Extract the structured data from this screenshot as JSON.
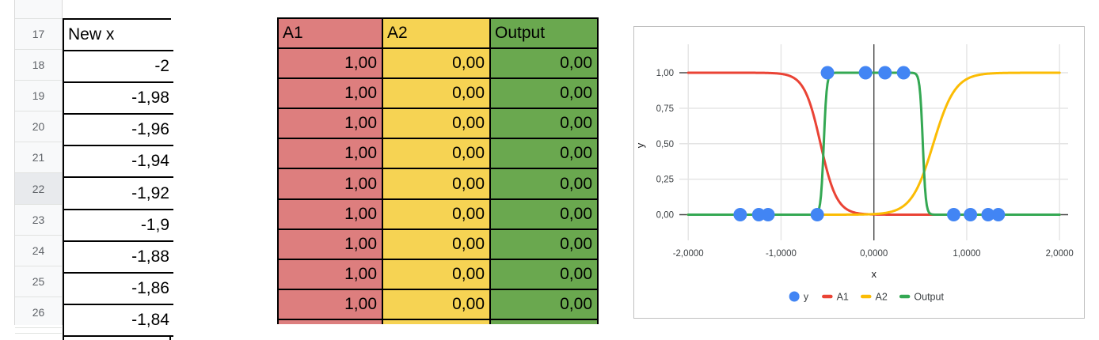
{
  "left_sheet": {
    "header": {
      "row": "17",
      "value": "New x"
    },
    "rows": [
      {
        "row": "18",
        "value": "-2"
      },
      {
        "row": "19",
        "value": "-1,98"
      },
      {
        "row": "20",
        "value": "-1,96"
      },
      {
        "row": "21",
        "value": "-1,94"
      },
      {
        "row": "22",
        "value": "-1,92",
        "highlighted": true
      },
      {
        "row": "23",
        "value": "-1,9"
      },
      {
        "row": "24",
        "value": "-1,88"
      },
      {
        "row": "25",
        "value": "-1,86"
      },
      {
        "row": "26",
        "value": "-1,84"
      }
    ]
  },
  "middle_table": {
    "columns": [
      {
        "label": "A1",
        "color": "#DD7E7E"
      },
      {
        "label": "A2",
        "color": "#F6D353"
      },
      {
        "label": "Output",
        "color": "#6AA84F"
      }
    ],
    "rows": [
      [
        "1,00",
        "0,00",
        "0,00"
      ],
      [
        "1,00",
        "0,00",
        "0,00"
      ],
      [
        "1,00",
        "0,00",
        "0,00"
      ],
      [
        "1,00",
        "0,00",
        "0,00"
      ],
      [
        "1,00",
        "0,00",
        "0,00"
      ],
      [
        "1,00",
        "0,00",
        "0,00"
      ],
      [
        "1,00",
        "0,00",
        "0,00"
      ],
      [
        "1,00",
        "0,00",
        "0,00"
      ],
      [
        "1,00",
        "0,00",
        "0,00"
      ]
    ]
  },
  "chart_data": {
    "type": "line",
    "xlabel": "x",
    "ylabel": "y",
    "xlim": [
      -2.09,
      2.09
    ],
    "ylim": [
      -0.185,
      1.2
    ],
    "grid": true,
    "legend_position": "bottom",
    "x_ticks": [
      {
        "value": -2,
        "label": "-2,0000"
      },
      {
        "value": -1,
        "label": "-1,0000"
      },
      {
        "value": 0,
        "label": "0,0000"
      },
      {
        "value": 1,
        "label": "1,0000"
      },
      {
        "value": 2,
        "label": "2,0000"
      }
    ],
    "y_ticks": [
      {
        "value": 1,
        "label": "1,00"
      },
      {
        "value": 0.75,
        "label": "0,75"
      },
      {
        "value": 0.5,
        "label": "0,50"
      },
      {
        "value": 0.25,
        "label": "0,25"
      },
      {
        "value": 0,
        "label": "0,00"
      }
    ],
    "scatter_series": {
      "name": "y",
      "color": "#4285F4",
      "marker": "circle",
      "radius": 8.5,
      "points": [
        [
          -1.44,
          0
        ],
        [
          -1.24,
          0
        ],
        [
          -1.14,
          0
        ],
        [
          -0.61,
          0
        ],
        [
          -0.5,
          1
        ],
        [
          -0.09,
          1
        ],
        [
          0.12,
          1
        ],
        [
          0.32,
          1
        ],
        [
          0.86,
          0
        ],
        [
          1.04,
          0
        ],
        [
          1.23,
          0
        ],
        [
          1.34,
          0
        ]
      ]
    },
    "line_series": [
      {
        "name": "A1",
        "color": "#EA4335",
        "shape": "sigmoid",
        "midpoint": -0.575,
        "steepness": -11.4
      },
      {
        "name": "A2",
        "color": "#FBBC04",
        "shape": "sigmoid",
        "midpoint": 0.64,
        "steepness": 8.5
      },
      {
        "name": "Output",
        "color": "#34A853",
        "shape": "sigmoid_band",
        "rise_midpoint": -0.54,
        "fall_midpoint": 0.527,
        "steepness": 62
      }
    ],
    "legend": [
      {
        "label": "y",
        "marker": "circle",
        "color": "#4285F4"
      },
      {
        "label": "A1",
        "marker": "line",
        "color": "#EA4335"
      },
      {
        "label": "A2",
        "marker": "line",
        "color": "#FBBC04"
      },
      {
        "label": "Output",
        "marker": "line",
        "color": "#34A853"
      }
    ],
    "colors": {
      "grid_light": "#e4e4e4",
      "axis_dark": "#454545",
      "tick_text": "#3c4043"
    }
  }
}
